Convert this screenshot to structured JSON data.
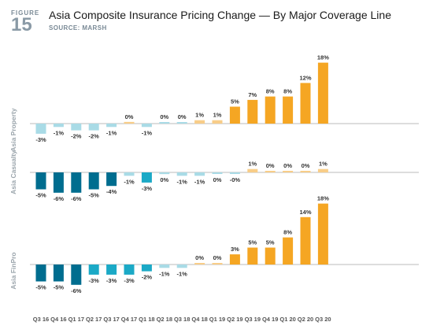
{
  "header": {
    "figure_label": "FIGURE",
    "figure_number": "15",
    "title": "Asia Composite Insurance Pricing Change — By Major Coverage Line",
    "source": "SOURCE: MARSH"
  },
  "colors": {
    "dark_teal": "#006d8f",
    "teal": "#1ba9c6",
    "light_teal": "#a9dbe6",
    "orange": "#f5a623",
    "light_orange": "#f8cd88",
    "axis": "#bbbbbb",
    "label": "#333333",
    "panel_label": "#9aa4ab"
  },
  "chart_data": {
    "type": "bar",
    "title": "Asia Composite Insurance Pricing Change — By Major Coverage Line",
    "categories": [
      "Q3 16",
      "Q4 16",
      "Q1 17",
      "Q2 17",
      "Q3 17",
      "Q4 17",
      "Q1 18",
      "Q2 18",
      "Q3 18",
      "Q4 18",
      "Q1 19",
      "Q2 19",
      "Q3 19",
      "Q4 19",
      "Q1 20",
      "Q2 20",
      "Q3 20"
    ],
    "unit": "%",
    "series": [
      {
        "name": "Asia Property",
        "values": [
          -3,
          -1,
          -2,
          -2,
          -1,
          0.5,
          -1,
          0,
          0,
          1,
          1,
          5,
          7,
          8,
          8,
          12,
          18
        ],
        "labels": [
          "-3%",
          "-1%",
          "-2%",
          "-2%",
          "-1%",
          "0%",
          "-1%",
          "0%",
          "0%",
          "1%",
          "1%",
          "5%",
          "7%",
          "8%",
          "8%",
          "12%",
          "18%"
        ],
        "colors": [
          "#a9dbe6",
          "#a9dbe6",
          "#a9dbe6",
          "#a9dbe6",
          "#a9dbe6",
          "#f8cd88",
          "#a9dbe6",
          "#a9dbe6",
          "#a9dbe6",
          "#f8cd88",
          "#f8cd88",
          "#f5a623",
          "#f5a623",
          "#f5a623",
          "#f5a623",
          "#f5a623",
          "#f5a623"
        ]
      },
      {
        "name": "Asia Casualty",
        "values": [
          -5,
          -6,
          -6,
          -5,
          -4,
          -1,
          -3,
          -0.5,
          -1,
          -1,
          -0.3,
          -0.3,
          1,
          0.2,
          0.2,
          0.2,
          1
        ],
        "labels": [
          "-5%",
          "-6%",
          "-6%",
          "-5%",
          "-4%",
          "-1%",
          "-3%",
          "0%",
          "-1%",
          "-1%",
          "0%",
          "-0%",
          "1%",
          "0%",
          "0%",
          "0%",
          "1%"
        ],
        "colors": [
          "#006d8f",
          "#006d8f",
          "#006d8f",
          "#006d8f",
          "#006d8f",
          "#a9dbe6",
          "#1ba9c6",
          "#a9dbe6",
          "#a9dbe6",
          "#a9dbe6",
          "#a9dbe6",
          "#a9dbe6",
          "#f8cd88",
          "#f8cd88",
          "#f8cd88",
          "#f8cd88",
          "#f8cd88"
        ]
      },
      {
        "name": "Asia FinPro",
        "values": [
          -5,
          -5,
          -6,
          -3,
          -3,
          -3,
          -2,
          -1,
          -1,
          0.2,
          0.2,
          3,
          5,
          5,
          8,
          14,
          18
        ],
        "labels": [
          "-5%",
          "-5%",
          "-6%",
          "-3%",
          "-3%",
          "-3%",
          "-2%",
          "-1%",
          "-1%",
          "0%",
          "0%",
          "3%",
          "5%",
          "5%",
          "8%",
          "14%",
          "18%"
        ],
        "colors": [
          "#006d8f",
          "#006d8f",
          "#006d8f",
          "#1ba9c6",
          "#1ba9c6",
          "#1ba9c6",
          "#1ba9c6",
          "#a9dbe6",
          "#a9dbe6",
          "#f8cd88",
          "#f8cd88",
          "#f5a623",
          "#f5a623",
          "#f5a623",
          "#f5a623",
          "#f5a623",
          "#f5a623"
        ]
      }
    ]
  }
}
